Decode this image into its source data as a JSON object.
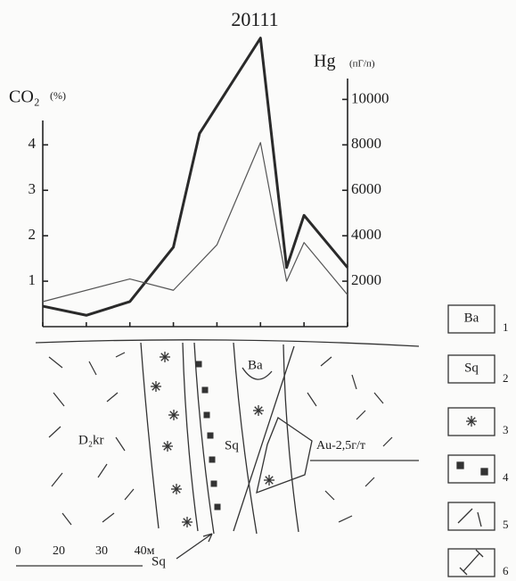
{
  "chart_data": {
    "type": "line",
    "title": "20111",
    "y_label": "CO₂",
    "y_unit": "(%)",
    "y2_label": "Hg",
    "y2_unit": "(пГ/п)",
    "xlim": [
      0,
      7
    ],
    "xticks": [
      0,
      1,
      2,
      3,
      4,
      5,
      6,
      7
    ],
    "ylim": [
      0,
      6.5
    ],
    "yticks": [
      1,
      2,
      3,
      4
    ],
    "y2lim": [
      0,
      13000
    ],
    "y2ticks": [
      2000,
      4000,
      6000,
      8000,
      10000
    ],
    "series": [
      {
        "color": "#2a2a2a",
        "width": 3,
        "axis": "y2",
        "x": [
          0,
          1,
          2,
          3,
          3.6,
          5,
          5.6,
          6,
          7
        ],
        "values": [
          900,
          500,
          1100,
          3500,
          8500,
          12700,
          2600,
          4900,
          2600
        ]
      },
      {
        "color": "#555555",
        "width": 1.2,
        "axis": "y",
        "x": [
          0,
          2,
          3,
          4,
          5,
          5.6,
          6,
          7
        ],
        "values": [
          0.55,
          1.05,
          0.8,
          1.8,
          4.05,
          1.0,
          1.85,
          0.7
        ]
      }
    ]
  },
  "section": {
    "labels": [
      "Ba",
      "D₂kr",
      "Sq",
      "Au-2,5г/т",
      "Sq"
    ],
    "scale": [
      "0",
      "20",
      "30",
      "40м"
    ]
  },
  "legend": {
    "items": [
      {
        "text": "Ba",
        "number": "1"
      },
      {
        "text": "Sq",
        "number": "2"
      },
      {
        "number": "3"
      },
      {
        "number": "4"
      },
      {
        "number": "5"
      },
      {
        "number": "6"
      }
    ]
  }
}
